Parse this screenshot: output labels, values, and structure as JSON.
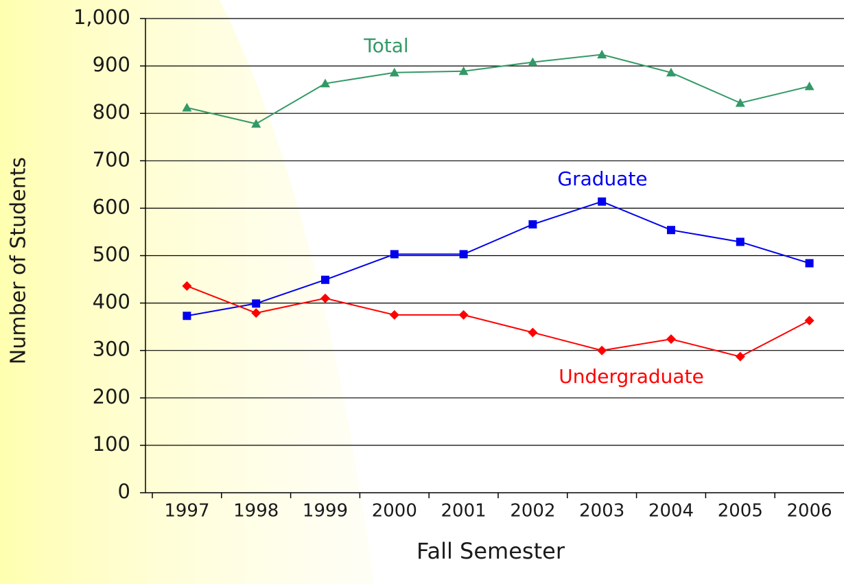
{
  "chart_data": {
    "type": "line",
    "x_label": "Fall Semester",
    "y_label": "Number of Students",
    "categories": [
      "1997",
      "1998",
      "1999",
      "2000",
      "2001",
      "2002",
      "2003",
      "2004",
      "2005",
      "2006"
    ],
    "series": [
      {
        "name": "Total",
        "color": "#339966",
        "marker": "triangle",
        "values": [
          812,
          778,
          863,
          886,
          889,
          908,
          924,
          886,
          822,
          857
        ]
      },
      {
        "name": "Graduate",
        "color": "#0000ee",
        "marker": "square",
        "values": [
          373,
          399,
          449,
          503,
          503,
          566,
          614,
          554,
          529,
          484
        ]
      },
      {
        "name": "Undergraduate",
        "color": "#ff0000",
        "marker": "diamond",
        "values": [
          436,
          379,
          410,
          375,
          375,
          338,
          300,
          324,
          287,
          363
        ]
      }
    ],
    "ylim": [
      0,
      1000
    ],
    "yticks": [
      0,
      100,
      200,
      300,
      400,
      500,
      600,
      700,
      800,
      900,
      {
        "value": 1000,
        "label": "1,000"
      }
    ],
    "grid": true
  }
}
